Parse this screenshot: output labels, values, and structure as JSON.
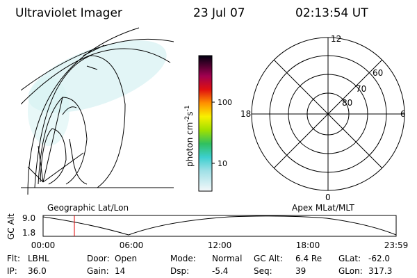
{
  "header": {
    "title": "Ultraviolet Imager",
    "date": "23 Jul 07",
    "time": "02:13:54 UT"
  },
  "colorbar": {
    "label": "photon cm",
    "exp1": "-2",
    "unit2": "s",
    "exp2": "-1",
    "ticks": [
      "100",
      "10"
    ]
  },
  "map": {
    "label": "Geographic Lat/Lon"
  },
  "polar": {
    "label": "Apex MLat/MLT",
    "mlt_labels": [
      "12",
      "18",
      "6",
      "0"
    ],
    "lat_labels": [
      "60",
      "70",
      "80"
    ]
  },
  "orbit": {
    "axis_label": "GC Alt",
    "y_labels": [
      "9.0",
      "1.8"
    ],
    "x_labels": [
      "00:00",
      "06:00",
      "12:00",
      "18:00",
      "23:59"
    ]
  },
  "footer": {
    "rows": [
      [
        [
          "Flt:",
          "LBHL"
        ],
        [
          "Door:",
          "Open"
        ],
        [
          "Mode:",
          "Normal"
        ],
        [
          "GC Alt:",
          "6.4 Re"
        ],
        [
          "GLat:",
          "-62.0"
        ]
      ],
      [
        [
          "IP:",
          "36.0"
        ],
        [
          "Gain:",
          "14"
        ],
        [
          "Dsp:",
          "-5.4"
        ],
        [
          "Seq:",
          "39"
        ],
        [
          "GLon:",
          "317.3"
        ]
      ]
    ]
  }
}
